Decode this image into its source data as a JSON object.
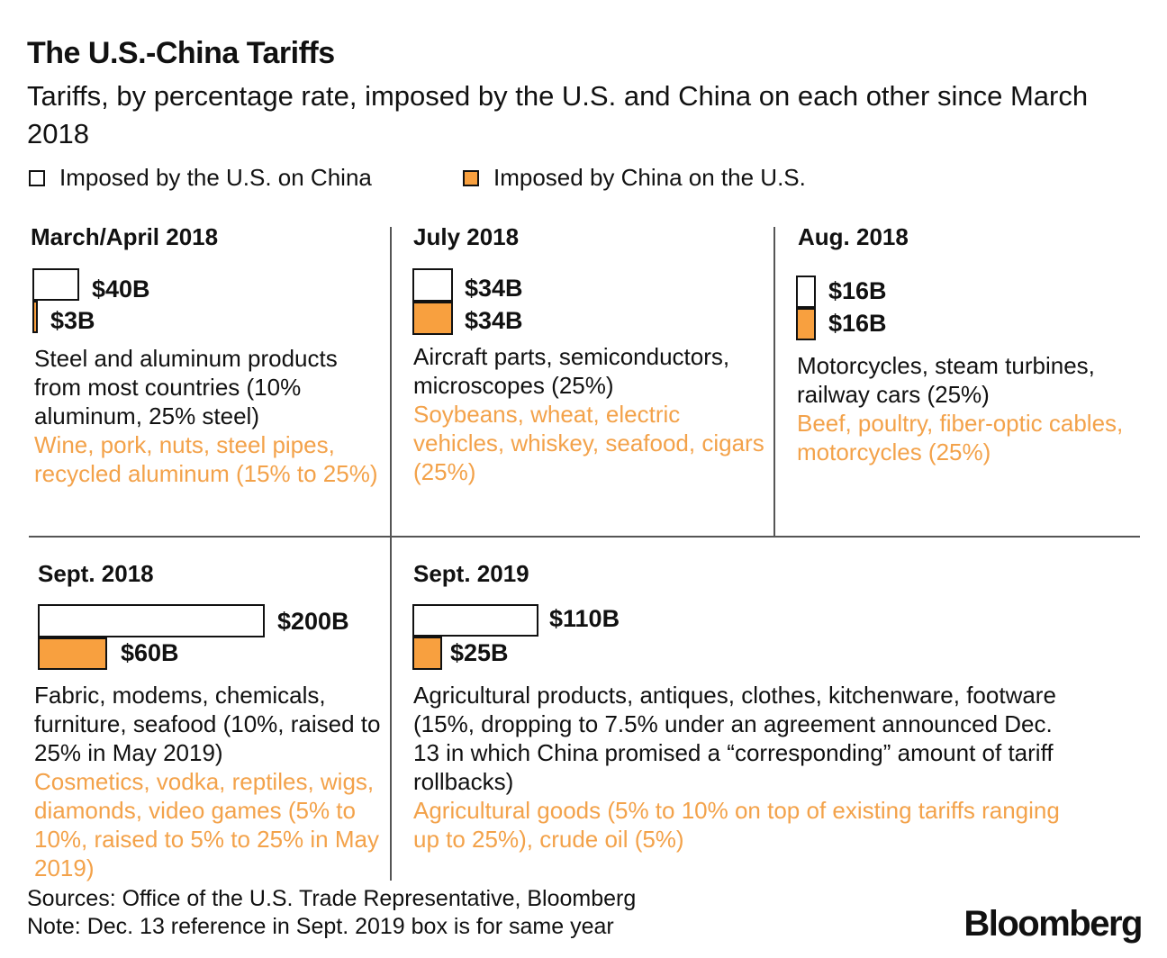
{
  "header": {
    "title": "The U.S.-China Tariffs",
    "subtitle": "Tariffs, by percentage rate, imposed by the U.S. and China on each other since March 2018"
  },
  "legend": {
    "us": "Imposed by the U.S. on China",
    "china": "Imposed by China on the U.S."
  },
  "colors": {
    "china": "#f8a03f",
    "us": "#ffffff"
  },
  "chart_data": {
    "type": "bar",
    "title": "The U.S.-China Tariffs",
    "subtitle": "Tariffs, by percentage rate, imposed by the U.S. and China on each other since March 2018",
    "categories": [
      "March/April 2018",
      "July 2018",
      "Aug. 2018",
      "Sept. 2018",
      "Sept. 2019"
    ],
    "series": [
      {
        "name": "Imposed by the U.S. on China",
        "values": [
          40,
          34,
          16,
          200,
          110
        ]
      },
      {
        "name": "Imposed by China on the U.S.",
        "values": [
          3,
          34,
          16,
          60,
          25
        ]
      }
    ],
    "unit": "billions of dollars",
    "panels": [
      {
        "period": "March/April 2018",
        "us_label": "$40B",
        "cn_label": "$3B",
        "us_text": "Steel and aluminum products from most countries (10% aluminum, 25% steel)",
        "cn_text": "Wine, pork, nuts, steel pipes, recycled aluminum (15% to 25%)"
      },
      {
        "period": "July 2018",
        "us_label": "$34B",
        "cn_label": "$34B",
        "us_text": "Aircraft parts, semiconductors, microscopes (25%)",
        "cn_text": "Soybeans, wheat, electric vehicles, whiskey, seafood, cigars (25%)"
      },
      {
        "period": "Aug. 2018",
        "us_label": "$16B",
        "cn_label": "$16B",
        "us_text": "Motorcycles, steam turbines, railway cars (25%)",
        "cn_text": "Beef, poultry, fiber-optic cables, motorcycles (25%)"
      },
      {
        "period": "Sept. 2018",
        "us_label": "$200B",
        "cn_label": "$60B",
        "us_text": "Fabric, modems, chemicals, furniture, seafood (10%, raised to 25% in May 2019)",
        "cn_text": "Cosmetics, vodka, reptiles, wigs, diamonds, video games (5% to 10%, raised to 5% to 25% in May 2019)"
      },
      {
        "period": "Sept. 2019",
        "us_label": "$110B",
        "cn_label": "$25B",
        "us_text": "Agricultural products, antiques, clothes, kitchenware, footware (15%, dropping to 7.5% under an agreement announced Dec. 13 in which China promised a “corresponding” amount of tariff rollbacks)",
        "cn_text": "Agricultural goods (5% to 10% on top of existing tariffs ranging up to 25%), crude oil (5%)"
      }
    ]
  },
  "footer": {
    "sources": "Sources: Office of the U.S. Trade Representative, Bloomberg",
    "note": "Note: Dec. 13 reference in Sept. 2019 box is for same year",
    "logo": "Bloomberg"
  }
}
